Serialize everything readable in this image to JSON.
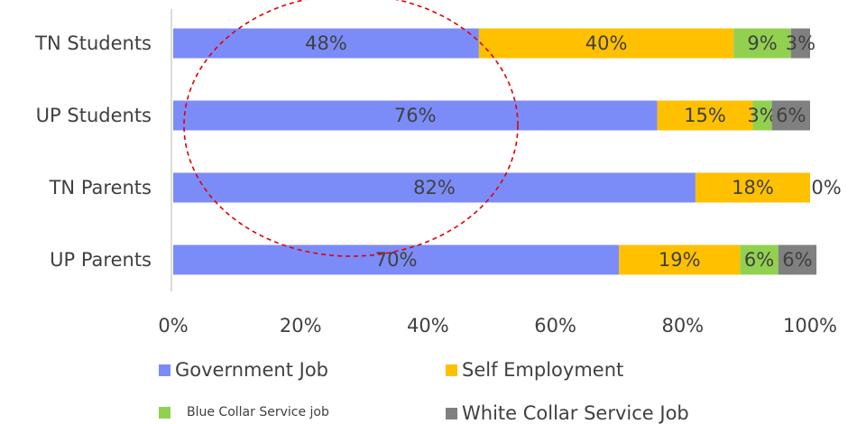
{
  "chart_data": {
    "type": "bar",
    "orientation": "horizontal",
    "stacked": true,
    "categories": [
      "TN Students",
      "UP Students",
      "TN Parents",
      "UP Parents"
    ],
    "series": [
      {
        "name": "Government Job",
        "color": "#7b8cf8",
        "values": [
          48,
          76,
          82,
          70
        ],
        "labels": [
          "48%",
          "76%",
          "82%",
          "70%"
        ]
      },
      {
        "name": "Self Employment",
        "color": "#ffc000",
        "values": [
          40,
          15,
          18,
          19
        ],
        "labels": [
          "40%",
          "15%",
          "18%",
          "19%"
        ]
      },
      {
        "name": "Blue Collar Service job",
        "color": "#92d050",
        "values": [
          9,
          3,
          0,
          6
        ],
        "labels": [
          "9%",
          "3%",
          "0%",
          "6%"
        ]
      },
      {
        "name": "White Collar Service Job",
        "color": "#808080",
        "values": [
          3,
          6,
          0,
          6
        ],
        "labels": [
          "3%",
          "6%",
          "",
          "6%"
        ]
      }
    ],
    "xlim": [
      0,
      100
    ],
    "x_ticks": [
      "0%",
      "20%",
      "40%",
      "60%",
      "80%",
      "100%"
    ],
    "title": "",
    "xlabel": "",
    "ylabel": "",
    "legend_position": "bottom",
    "annotation": "red dashed circle"
  },
  "legend": {
    "government": "Government Job",
    "self": "Self Employment",
    "blue": "Blue Collar Service job",
    "white": "White Collar Service Job"
  }
}
